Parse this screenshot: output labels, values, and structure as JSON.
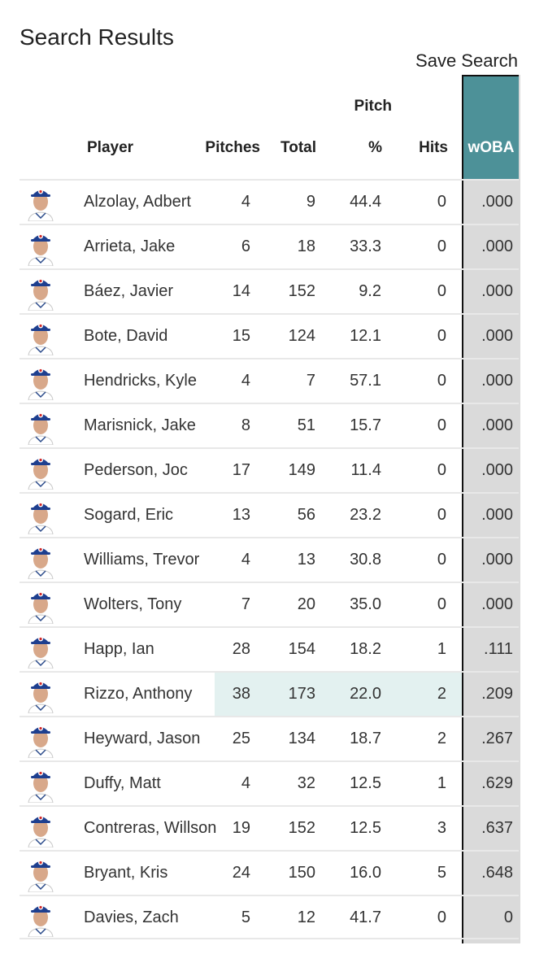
{
  "page": {
    "title": "Search Results",
    "save_search": "Save Search"
  },
  "table": {
    "headers": {
      "player": "Player",
      "pitches": "Pitches",
      "total": "Total",
      "pitch_top": "Pitch",
      "pitch_bottom": "%",
      "hits": "Hits",
      "woba": "wOBA"
    },
    "highlight_color": "#e3f1f0",
    "woba_header_color": "#4d9198",
    "rows": [
      {
        "name": "Alzolay, Adbert",
        "pitches": "4",
        "total": "9",
        "pct": "44.4",
        "hits": "0",
        "woba": ".000",
        "highlight": false
      },
      {
        "name": "Arrieta, Jake",
        "pitches": "6",
        "total": "18",
        "pct": "33.3",
        "hits": "0",
        "woba": ".000",
        "highlight": false
      },
      {
        "name": "Báez, Javier",
        "pitches": "14",
        "total": "152",
        "pct": "9.2",
        "hits": "0",
        "woba": ".000",
        "highlight": false
      },
      {
        "name": "Bote, David",
        "pitches": "15",
        "total": "124",
        "pct": "12.1",
        "hits": "0",
        "woba": ".000",
        "highlight": false
      },
      {
        "name": "Hendricks, Kyle",
        "pitches": "4",
        "total": "7",
        "pct": "57.1",
        "hits": "0",
        "woba": ".000",
        "highlight": false
      },
      {
        "name": "Marisnick, Jake",
        "pitches": "8",
        "total": "51",
        "pct": "15.7",
        "hits": "0",
        "woba": ".000",
        "highlight": false
      },
      {
        "name": "Pederson, Joc",
        "pitches": "17",
        "total": "149",
        "pct": "11.4",
        "hits": "0",
        "woba": ".000",
        "highlight": false
      },
      {
        "name": "Sogard, Eric",
        "pitches": "13",
        "total": "56",
        "pct": "23.2",
        "hits": "0",
        "woba": ".000",
        "highlight": false
      },
      {
        "name": "Williams, Trevor",
        "pitches": "4",
        "total": "13",
        "pct": "30.8",
        "hits": "0",
        "woba": ".000",
        "highlight": false
      },
      {
        "name": "Wolters, Tony",
        "pitches": "7",
        "total": "20",
        "pct": "35.0",
        "hits": "0",
        "woba": ".000",
        "highlight": false
      },
      {
        "name": "Happ, Ian",
        "pitches": "28",
        "total": "154",
        "pct": "18.2",
        "hits": "1",
        "woba": ".111",
        "highlight": false
      },
      {
        "name": "Rizzo, Anthony",
        "pitches": "38",
        "total": "173",
        "pct": "22.0",
        "hits": "2",
        "woba": ".209",
        "highlight": true
      },
      {
        "name": "Heyward, Jason",
        "pitches": "25",
        "total": "134",
        "pct": "18.7",
        "hits": "2",
        "woba": ".267",
        "highlight": false
      },
      {
        "name": "Duffy, Matt",
        "pitches": "4",
        "total": "32",
        "pct": "12.5",
        "hits": "1",
        "woba": ".629",
        "highlight": false
      },
      {
        "name": "Contreras, Willson",
        "pitches": "19",
        "total": "152",
        "pct": "12.5",
        "hits": "3",
        "woba": ".637",
        "highlight": false
      },
      {
        "name": "Bryant, Kris",
        "pitches": "24",
        "total": "150",
        "pct": "16.0",
        "hits": "5",
        "woba": ".648",
        "highlight": false
      },
      {
        "name": "Davies, Zach",
        "pitches": "5",
        "total": "12",
        "pct": "41.7",
        "hits": "0",
        "woba": "0",
        "highlight": false
      }
    ]
  }
}
